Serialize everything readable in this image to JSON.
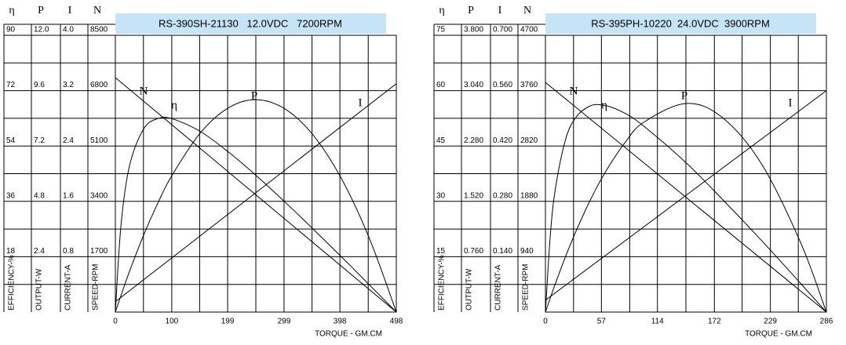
{
  "chart_data": [
    {
      "type": "line",
      "title": "RS-390SH-21130   12.0VDC   7200RPM",
      "xlabel": "TORQUE - GM.CM",
      "xlim": [
        0,
        498
      ],
      "xticks": [
        0,
        100,
        199,
        299,
        398,
        498
      ],
      "axes": [
        {
          "symbol": "η",
          "label": "EFFICIENCY-%",
          "ylim": [
            0,
            90
          ],
          "yticks": [
            18,
            36,
            54,
            72,
            90
          ]
        },
        {
          "symbol": "P",
          "label": "OUTPUT-W",
          "ylim": [
            0,
            12
          ],
          "yticks": [
            2.4,
            4.8,
            7.2,
            9.6,
            {
              "value": 12,
              "label": "12.0"
            }
          ]
        },
        {
          "symbol": "I",
          "label": "CURRENT-A",
          "ylim": [
            0,
            4
          ],
          "yticks": [
            0.8,
            1.6,
            2.4,
            3.2,
            {
              "value": 4,
              "label": "4.0"
            }
          ]
        },
        {
          "symbol": "N",
          "label": "SPEED-RPM",
          "ylim": [
            0,
            8500
          ],
          "yticks": [
            1700,
            3400,
            5100,
            6800,
            8500
          ]
        }
      ],
      "series": [
        {
          "name": "N",
          "axis": 3,
          "color": "#000000",
          "x": [
            0,
            498
          ],
          "values": [
            7200,
            0
          ]
        },
        {
          "name": "η",
          "axis": 0,
          "color": "#000000",
          "x": [
            0,
            10,
            25,
            50,
            75,
            100,
            150,
            200,
            249,
            300,
            350,
            400,
            450,
            498
          ],
          "values": [
            0,
            28.3,
            47.5,
            59.5,
            62.9,
            62.9,
            58.8,
            52.1,
            44.5,
            35.9,
            27.1,
            18.1,
            8.9,
            0
          ]
        },
        {
          "name": "P",
          "axis": 1,
          "color": "#000000",
          "x": [
            0,
            10,
            25,
            50,
            75,
            100,
            150,
            200,
            249,
            300,
            350,
            400,
            450,
            498
          ],
          "values": [
            0,
            0.72,
            1.76,
            3.33,
            4.71,
            5.91,
            7.75,
            8.85,
            9.21,
            8.82,
            7.69,
            5.82,
            3.21,
            0
          ]
        },
        {
          "name": "I",
          "axis": 2,
          "color": "#000000",
          "x": [
            0,
            498
          ],
          "values": [
            0.15,
            3.3
          ]
        }
      ]
    },
    {
      "type": "line",
      "title": "RS-395PH-10220  24.0VDC  3900RPM",
      "xlabel": "TORQUE - GM.CM",
      "xlim": [
        0,
        286
      ],
      "xticks": [
        0,
        57,
        114,
        172,
        229,
        286
      ],
      "axes": [
        {
          "symbol": "η",
          "label": "EFFICIENCY-%",
          "ylim": [
            0,
            75
          ],
          "yticks": [
            15,
            30,
            45,
            60,
            75
          ]
        },
        {
          "symbol": "P",
          "label": "OUTPUT-W",
          "ylim": [
            0,
            3.8
          ],
          "yticks": [
            {
              "value": 0.76,
              "label": "0.760"
            },
            {
              "value": 1.52,
              "label": "1.520"
            },
            {
              "value": 2.28,
              "label": "2.280"
            },
            {
              "value": 3.04,
              "label": "3.040"
            },
            {
              "value": 3.8,
              "label": "3.800"
            }
          ]
        },
        {
          "symbol": "I",
          "label": "CURRENT-A",
          "ylim": [
            0,
            0.7
          ],
          "yticks": [
            {
              "value": 0.14,
              "label": "0.140"
            },
            {
              "value": 0.28,
              "label": "0.280"
            },
            {
              "value": 0.42,
              "label": "0.420"
            },
            {
              "value": 0.56,
              "label": "0.560"
            },
            {
              "value": 0.7,
              "label": "0.700"
            }
          ]
        },
        {
          "symbol": "N",
          "label": "SPEED-RPM",
          "ylim": [
            0,
            4700
          ],
          "yticks": [
            940,
            1880,
            2820,
            3760,
            4700
          ]
        }
      ],
      "series": [
        {
          "name": "N",
          "axis": 3,
          "color": "#000000",
          "x": [
            0,
            286
          ],
          "values": [
            3900,
            0
          ]
        },
        {
          "name": "η",
          "axis": 0,
          "color": "#000000",
          "x": [
            0,
            5,
            10,
            20,
            30,
            45,
            60,
            80,
            100,
            143,
            180,
            220,
            260,
            286
          ],
          "values": [
            0,
            20.9,
            33.2,
            46.3,
            52.4,
            55.8,
            56.0,
            54.0,
            50.4,
            40.5,
            30.6,
            19.4,
            7.7,
            0
          ]
        },
        {
          "name": "P",
          "axis": 1,
          "color": "#000000",
          "x": [
            0,
            5,
            10,
            20,
            30,
            45,
            60,
            80,
            100,
            143,
            180,
            220,
            260,
            286
          ],
          "values": [
            0,
            0.197,
            0.387,
            0.745,
            1.075,
            1.519,
            1.899,
            2.308,
            2.605,
            2.864,
            2.672,
            2.033,
            0.947,
            0
          ]
        },
        {
          "name": "I",
          "axis": 2,
          "color": "#000000",
          "x": [
            0,
            286
          ],
          "values": [
            0.03,
            0.56
          ]
        }
      ]
    }
  ]
}
